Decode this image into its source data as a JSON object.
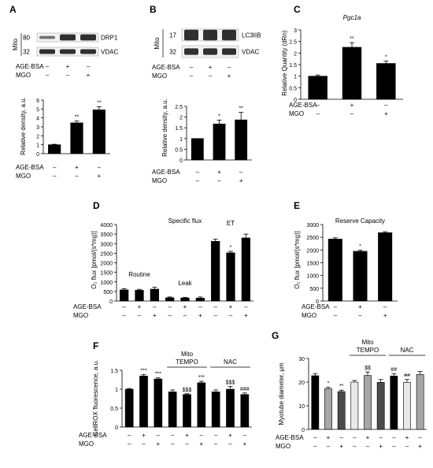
{
  "colors": {
    "black": "#000000",
    "gray": "#8c8c8c",
    "light": "#e8e8e8",
    "dark": "#4a4a4a",
    "mid": "#a6a6a6",
    "blot": "#1a1a1a"
  },
  "chart_data": [
    {
      "id": "A",
      "panel_label": "A",
      "type": "bar",
      "blots": {
        "side_label": "Mito",
        "rows": [
          {
            "marker": "80",
            "band": "DRP1"
          },
          {
            "marker": "32",
            "band": "VDAC"
          }
        ]
      },
      "blot_conditions": [
        {
          "name": "AGE-BSA",
          "signs": [
            "–",
            "+",
            "–"
          ]
        },
        {
          "name": "MGO",
          "signs": [
            "–",
            "–",
            "+"
          ]
        }
      ],
      "ylabel": "Relative density, a.u.",
      "ylim": [
        0,
        6
      ],
      "yticks": [
        "0",
        "1",
        "2",
        "3",
        "4",
        "5",
        "6"
      ],
      "values": [
        1,
        3.45,
        4.9
      ],
      "errors": [
        0.05,
        0.2,
        0.35
      ],
      "colors": [
        "black",
        "black",
        "black"
      ],
      "annotations": [
        "",
        "**",
        "**"
      ],
      "conditions": [
        {
          "name": "AGE-BSA",
          "signs": [
            "–",
            "+",
            "–"
          ]
        },
        {
          "name": "MGO",
          "signs": [
            "–",
            "–",
            "+"
          ]
        }
      ]
    },
    {
      "id": "B",
      "panel_label": "B",
      "type": "bar",
      "blots": {
        "side_label": "Mito",
        "rows": [
          {
            "marker": "17",
            "band": "LC3IIB"
          },
          {
            "marker": "32",
            "band": "VDAC"
          }
        ]
      },
      "blot_conditions": [
        {
          "name": "AGE-BSA",
          "signs": [
            "–",
            "+",
            "–"
          ]
        },
        {
          "name": "MGO",
          "signs": [
            "–",
            "–",
            "+"
          ]
        }
      ],
      "ylabel": "Relative density, a.u.",
      "ylim": [
        0,
        2.5
      ],
      "yticks": [
        "0",
        "0.5",
        "1",
        "1.5",
        "2",
        "2.5"
      ],
      "values": [
        1,
        1.68,
        1.87
      ],
      "errors": [
        0,
        0.18,
        0.35
      ],
      "colors": [
        "black",
        "black",
        "black"
      ],
      "annotations": [
        "",
        "*",
        "**"
      ],
      "conditions": [
        {
          "name": "AGE-BSA",
          "signs": [
            "–",
            "+",
            "–"
          ]
        },
        {
          "name": "MGO",
          "signs": [
            "–",
            "–",
            "+"
          ]
        }
      ]
    },
    {
      "id": "C",
      "panel_label": "C",
      "type": "bar",
      "title": "Pgc1a",
      "ylabel": "Relative Quantity (dRn)",
      "ylim": [
        0,
        3
      ],
      "yticks": [
        "0",
        "0.5",
        "1",
        "1.5",
        "2",
        "2.5",
        "3"
      ],
      "values": [
        1,
        2.25,
        1.55
      ],
      "errors": [
        0.05,
        0.2,
        0.1
      ],
      "colors": [
        "black",
        "black",
        "black"
      ],
      "annotations": [
        "",
        "**",
        "*"
      ],
      "conditions": [
        {
          "name": "AGE-BSA",
          "signs": [
            "–",
            "+",
            "–"
          ]
        },
        {
          "name": "MGO",
          "signs": [
            "–",
            "–",
            "+"
          ]
        }
      ]
    },
    {
      "id": "D",
      "panel_label": "D",
      "type": "bar",
      "title": "Specific flux",
      "ylabel": "O₂ flux [pmol/(s*mg)]",
      "ylim": [
        0,
        4000
      ],
      "yticks": [
        "0",
        "500",
        "1000",
        "1500",
        "2000",
        "2500",
        "3000",
        "3500",
        "4000"
      ],
      "groups": [
        "Routine",
        "Leak",
        "ET"
      ],
      "values": [
        580,
        560,
        620,
        170,
        160,
        150,
        3120,
        2520,
        3300
      ],
      "errors": [
        60,
        50,
        100,
        40,
        30,
        60,
        120,
        80,
        200
      ],
      "colors": [
        "black",
        "black",
        "black",
        "black",
        "black",
        "black",
        "black",
        "black",
        "black"
      ],
      "annotations": [
        "",
        "",
        "",
        "",
        "",
        "",
        "",
        "*",
        ""
      ],
      "conditions": [
        {
          "name": "AGE-BSA",
          "signs": [
            "–",
            "+",
            "–",
            "–",
            "+",
            "–",
            "–",
            "+",
            "–"
          ]
        },
        {
          "name": "MGO",
          "signs": [
            "–",
            "–",
            "+",
            "–",
            "–",
            "+",
            "–",
            "–",
            "+"
          ]
        }
      ]
    },
    {
      "id": "E",
      "panel_label": "E",
      "type": "bar",
      "title": "Reserve Capacity",
      "ylabel": "O₂ flux [pmol/(s*mg)]",
      "ylim": [
        0,
        3000
      ],
      "yticks": [
        "0",
        "500",
        "1000",
        "1500",
        "2000",
        "2500",
        "3000"
      ],
      "values": [
        2430,
        1950,
        2680
      ],
      "errors": [
        50,
        40,
        40
      ],
      "colors": [
        "black",
        "black",
        "black"
      ],
      "annotations": [
        "",
        "*",
        ""
      ],
      "conditions": [
        {
          "name": "AGE-BSA",
          "signs": [
            "–",
            "+",
            "–"
          ]
        },
        {
          "name": "MGO",
          "signs": [
            "–",
            "–",
            "+"
          ]
        }
      ]
    },
    {
      "id": "F",
      "panel_label": "F",
      "type": "bar",
      "ylabel": "CellROX fluorescence, a.u.",
      "ylim": [
        0,
        1.5
      ],
      "yticks": [
        "0",
        "0.5",
        "1",
        "1.5"
      ],
      "group_labels": [
        {
          "text": "Mito TEMPO",
          "lines": [
            "Mito",
            "TEMPO"
          ]
        },
        {
          "text": "NAC",
          "lines": [
            "NAC"
          ]
        }
      ],
      "values": [
        1,
        1.35,
        1.27,
        0.93,
        0.86,
        1.17,
        0.93,
        1.0,
        0.86
      ],
      "errors": [
        0.02,
        0.04,
        0.03,
        0.05,
        0.02,
        0.04,
        0.05,
        0.07,
        0.04
      ],
      "colors": [
        "black",
        "black",
        "black",
        "black",
        "black",
        "black",
        "black",
        "black",
        "black"
      ],
      "annotations": [
        "",
        "***",
        "***",
        "",
        "$$$",
        "***",
        "",
        "$$$",
        "###"
      ],
      "conditions": [
        {
          "name": "AGE-BSA",
          "signs": [
            "–",
            "+",
            "–",
            "–",
            "+",
            "–",
            "–",
            "+",
            "–"
          ]
        },
        {
          "name": "MGO",
          "signs": [
            "–",
            "–",
            "+",
            "–",
            "–",
            "+",
            "–",
            "–",
            "+"
          ]
        }
      ]
    },
    {
      "id": "G",
      "panel_label": "G",
      "type": "bar",
      "ylabel": "Myotube diameter, µm",
      "ylim": [
        0,
        30
      ],
      "yticks": [
        "0",
        "10",
        "20",
        "30"
      ],
      "group_labels": [
        {
          "text": "Mito TEMPO",
          "lines": [
            "Mito",
            "TEMPO"
          ]
        },
        {
          "text": "NAC",
          "lines": [
            "NAC"
          ]
        }
      ],
      "values": [
        22.7,
        17.2,
        16.0,
        20.0,
        22.8,
        19.9,
        22.6,
        19.9,
        23.2
      ],
      "errors": [
        0.9,
        0.6,
        0.6,
        0.7,
        1.5,
        1.2,
        1.0,
        1.2,
        1.3
      ],
      "colors": [
        "black",
        "mid",
        "dark",
        "light",
        "mid",
        "dark",
        "black",
        "light",
        "mid"
      ],
      "annotations": [
        "",
        "*",
        "**",
        "",
        "$$",
        "",
        "##",
        "##",
        ""
      ],
      "conditions": [
        {
          "name": "AGE-BSA",
          "signs": [
            "–",
            "+",
            "–",
            "–",
            "+",
            "–",
            "–",
            "+",
            "–"
          ]
        },
        {
          "name": "MGO",
          "signs": [
            "–",
            "–",
            "+",
            "–",
            "–",
            "+",
            "–",
            "–",
            "+"
          ]
        }
      ]
    }
  ]
}
